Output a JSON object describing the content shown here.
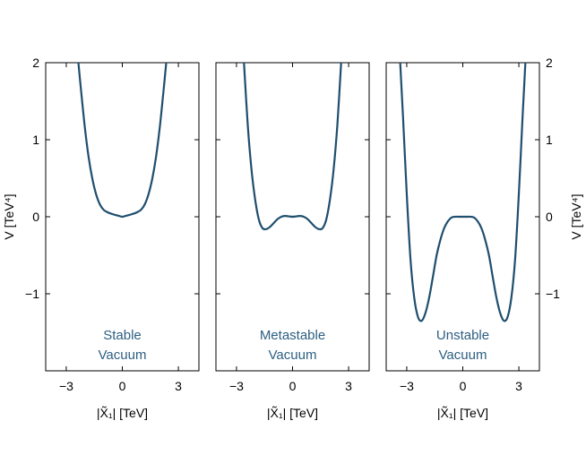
{
  "colors": {
    "curve": "#1f4e6e",
    "label": "#2d5f82",
    "axis": "#000000"
  },
  "ylabel": "V  [TeV⁴]",
  "xlabel": "|X̃₁|  [TeV]",
  "chart_data": [
    {
      "type": "line",
      "panel_label": [
        "Stable",
        "Vacuum"
      ],
      "xlabel": "|X̃₁|  [TeV]",
      "ylabel": "V  [TeV⁴]",
      "xlim": [
        -4.1,
        4.1
      ],
      "ylim": [
        -2,
        2
      ],
      "xticks": [
        -3,
        0,
        3
      ],
      "yticks": [
        -1,
        0,
        1,
        2
      ],
      "xtick_labels": [
        "−3",
        "0",
        "3"
      ],
      "ytick_labels": [
        "−1",
        "0",
        "1",
        "2"
      ],
      "x": [
        -2.35,
        -2.2,
        -2.0,
        -1.8,
        -1.6,
        -1.4,
        -1.2,
        -1.0,
        -0.8,
        -0.6,
        -0.4,
        -0.2,
        0.0,
        0.2,
        0.4,
        0.6,
        0.8,
        1.0,
        1.2,
        1.4,
        1.6,
        1.8,
        2.0,
        2.2,
        2.35
      ],
      "y": [
        2.0,
        1.62,
        1.15,
        0.77,
        0.49,
        0.29,
        0.16,
        0.09,
        0.06,
        0.04,
        0.025,
        0.012,
        0.0,
        0.012,
        0.025,
        0.04,
        0.06,
        0.09,
        0.16,
        0.29,
        0.49,
        0.77,
        1.15,
        1.62,
        2.0
      ]
    },
    {
      "type": "line",
      "panel_label": [
        "Metastable",
        "Vacuum"
      ],
      "xlabel": "|X̃₁|  [TeV]",
      "xlim": [
        -4.1,
        4.1
      ],
      "ylim": [
        -2,
        2
      ],
      "xticks": [
        -3,
        0,
        3
      ],
      "yticks": [
        -1,
        0,
        1,
        2
      ],
      "xtick_labels": [
        "−3",
        "0",
        "3"
      ],
      "x": [
        -2.6,
        -2.4,
        -2.2,
        -2.0,
        -1.8,
        -1.6,
        -1.4,
        -1.2,
        -1.0,
        -0.8,
        -0.6,
        -0.4,
        -0.2,
        0.0,
        0.2,
        0.4,
        0.6,
        0.8,
        1.0,
        1.2,
        1.4,
        1.6,
        1.8,
        2.0,
        2.2,
        2.4,
        2.6
      ],
      "y": [
        2.0,
        1.2,
        0.62,
        0.22,
        -0.04,
        -0.15,
        -0.16,
        -0.13,
        -0.08,
        -0.03,
        0.0,
        0.01,
        0.005,
        0.0,
        0.005,
        0.01,
        0.0,
        -0.03,
        -0.08,
        -0.13,
        -0.16,
        -0.15,
        -0.04,
        0.22,
        0.62,
        1.2,
        2.0
      ]
    },
    {
      "type": "line",
      "panel_label": [
        "Unstable",
        "Vacuum"
      ],
      "xlabel": "|X̃₁|  [TeV]",
      "ylabel": "V  [TeV⁴]",
      "xlim": [
        -4.1,
        4.1
      ],
      "ylim": [
        -2,
        2
      ],
      "xticks": [
        -3,
        0,
        3
      ],
      "yticks": [
        -1,
        0,
        1,
        2
      ],
      "xtick_labels": [
        "−3",
        "0",
        "3"
      ],
      "ytick_labels": [
        "−1",
        "0",
        "1",
        "2"
      ],
      "x": [
        -3.35,
        -3.2,
        -3.0,
        -2.8,
        -2.6,
        -2.4,
        -2.2,
        -2.0,
        -1.8,
        -1.6,
        -1.4,
        -1.2,
        -1.0,
        -0.8,
        -0.6,
        -0.4,
        -0.2,
        0.0,
        0.2,
        0.4,
        0.6,
        0.8,
        1.0,
        1.2,
        1.4,
        1.6,
        1.8,
        2.0,
        2.2,
        2.4,
        2.6,
        2.8,
        3.0,
        3.2,
        3.35
      ],
      "y": [
        2.0,
        1.3,
        0.3,
        -0.55,
        -1.05,
        -1.3,
        -1.35,
        -1.25,
        -1.05,
        -0.78,
        -0.5,
        -0.3,
        -0.15,
        -0.06,
        -0.01,
        0.0,
        0.0,
        0.0,
        0.0,
        0.0,
        -0.01,
        -0.06,
        -0.15,
        -0.3,
        -0.5,
        -0.78,
        -1.05,
        -1.25,
        -1.35,
        -1.3,
        -1.05,
        -0.55,
        0.3,
        1.3,
        2.0
      ]
    }
  ]
}
